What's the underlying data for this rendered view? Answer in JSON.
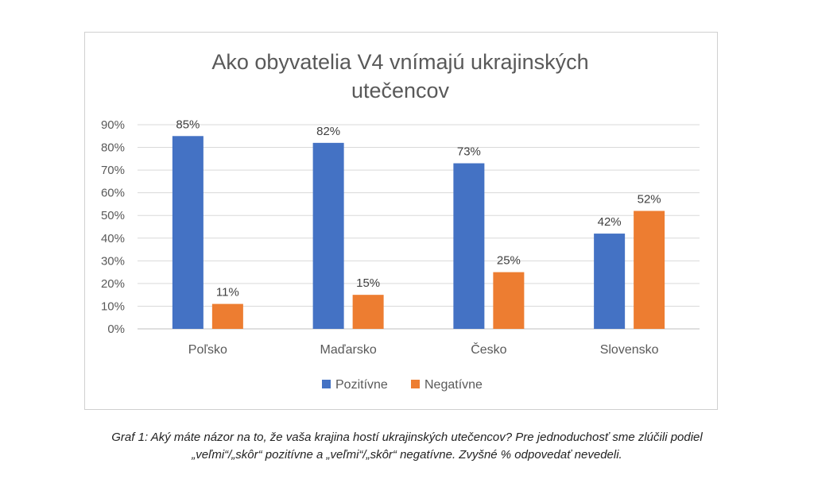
{
  "chart_data": {
    "type": "bar",
    "title_lines": [
      "Ako obyvatelia V4 vnímajú ukrajinských",
      "utečencov"
    ],
    "categories": [
      "Poľsko",
      "Maďarsko",
      "Česko",
      "Slovensko"
    ],
    "series": [
      {
        "name": "Pozitívne",
        "color": "#4472c4",
        "values": [
          85,
          82,
          73,
          42
        ],
        "labels": [
          "85%",
          "82%",
          "73%",
          "42%"
        ]
      },
      {
        "name": "Negatívne",
        "color": "#ed7d31",
        "values": [
          11,
          15,
          25,
          52
        ],
        "labels": [
          "11%",
          "15%",
          "25%",
          "52%"
        ]
      }
    ],
    "y_ticks": [
      "0%",
      "10%",
      "20%",
      "30%",
      "40%",
      "50%",
      "60%",
      "70%",
      "80%",
      "90%"
    ],
    "ylim": [
      0,
      90
    ],
    "grid": true,
    "legend_position": "bottom",
    "gridline_color": "#d9d9d9"
  },
  "caption": {
    "line1": "Graf 1: Aký máte názor na to, že vaša krajina hostí ukrajinských utečencov? Pre jednoduchosť sme zlúčili podiel",
    "line2": "„veľmi“/„skôr“ pozitívne a „veľmi“/„skôr“ negatívne. Zvyšné % odpovedať nevedeli."
  }
}
